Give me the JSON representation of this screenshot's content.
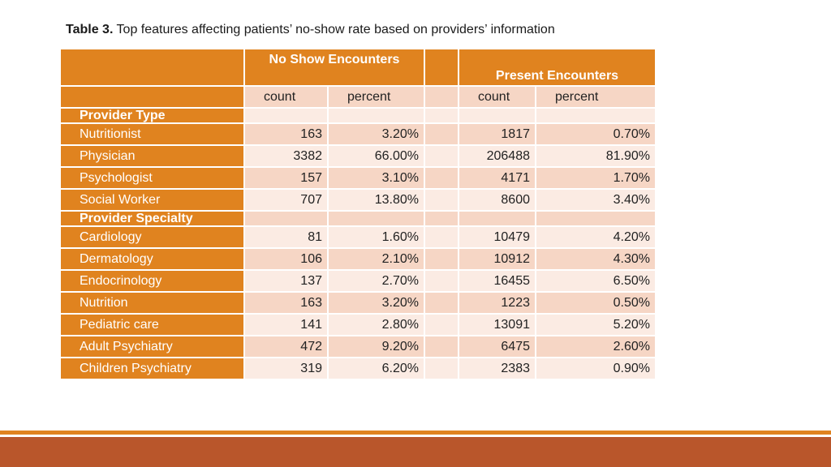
{
  "caption": {
    "label": "Table 3.",
    "text": " Top features affecting patients’ no-show rate based on providers’ information"
  },
  "header": {
    "no_show": "No Show Encounters",
    "present": "Present Encounters",
    "count1": "count",
    "percent1": "percent",
    "count2": "count",
    "percent2": "percent"
  },
  "sections": {
    "provider_type": {
      "title": "Provider Type",
      "rows": [
        {
          "name": "Nutritionist",
          "ns_count": "163",
          "ns_pct": "3.20%",
          "p_count": "1817",
          "p_pct": "0.70%"
        },
        {
          "name": "Physician",
          "ns_count": "3382",
          "ns_pct": "66.00%",
          "p_count": "206488",
          "p_pct": "81.90%"
        },
        {
          "name": "Psychologist",
          "ns_count": "157",
          "ns_pct": "3.10%",
          "p_count": "4171",
          "p_pct": "1.70%"
        },
        {
          "name": "Social Worker",
          "ns_count": "707",
          "ns_pct": "13.80%",
          "p_count": "8600",
          "p_pct": "3.40%"
        }
      ]
    },
    "provider_specialty": {
      "title": "Provider Specialty",
      "rows": [
        {
          "name": "Cardiology",
          "ns_count": "81",
          "ns_pct": "1.60%",
          "p_count": "10479",
          "p_pct": "4.20%"
        },
        {
          "name": "Dermatology",
          "ns_count": "106",
          "ns_pct": "2.10%",
          "p_count": "10912",
          "p_pct": "4.30%"
        },
        {
          "name": "Endocrinology",
          "ns_count": "137",
          "ns_pct": "2.70%",
          "p_count": "16455",
          "p_pct": "6.50%"
        },
        {
          "name": "Nutrition",
          "ns_count": "163",
          "ns_pct": "3.20%",
          "p_count": "1223",
          "p_pct": "0.50%"
        },
        {
          "name": "Pediatric care",
          "ns_count": "141",
          "ns_pct": "2.80%",
          "p_count": "13091",
          "p_pct": "5.20%"
        },
        {
          "name": "Adult Psychiatry",
          "ns_count": "472",
          "ns_pct": "9.20%",
          "p_count": "6475",
          "p_pct": "2.60%"
        },
        {
          "name": "Children Psychiatry",
          "ns_count": "319",
          "ns_pct": "6.20%",
          "p_count": "2383",
          "p_pct": "0.90%"
        }
      ]
    }
  },
  "colors": {
    "header_orange": "#e0831f",
    "row_peach": "#f6d6c5",
    "row_light": "#fbebe3",
    "footer_bar": "#b9562b"
  }
}
